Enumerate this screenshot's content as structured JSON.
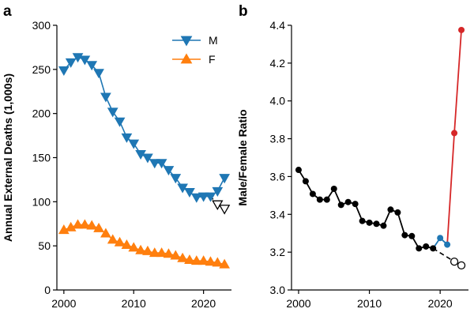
{
  "chart_data": [
    {
      "panel": "a",
      "type": "line",
      "title": "",
      "xlabel": "",
      "ylabel": "Annual External Deaths (1,000s)",
      "xlim": [
        1999,
        2024
      ],
      "ylim": [
        0,
        300
      ],
      "xticks": [
        2000,
        2010,
        2020
      ],
      "yticks": [
        0,
        50,
        100,
        150,
        200,
        250,
        300
      ],
      "legend": {
        "placement": "top-right",
        "entries": [
          "M",
          "F"
        ]
      },
      "grid": false,
      "colors": {
        "M": "#1f77b4",
        "F": "#ff7f0e"
      },
      "series": [
        {
          "name": "M",
          "marker": "triangle-down",
          "x": [
            2000,
            2001,
            2002,
            2003,
            2004,
            2005,
            2006,
            2007,
            2008,
            2009,
            2010,
            2011,
            2012,
            2013,
            2014,
            2015,
            2016,
            2017,
            2018,
            2019,
            2020,
            2021
          ],
          "y": [
            249,
            258,
            264,
            261,
            255,
            246,
            219,
            202,
            191,
            173,
            166,
            154,
            150,
            144,
            144,
            136,
            127,
            116,
            111,
            105,
            106,
            106
          ]
        },
        {
          "name": "M projected",
          "marker": "triangle-down-open",
          "x": [
            2021,
            2022,
            2023
          ],
          "y": [
            106,
            97,
            92
          ]
        },
        {
          "name": "M observed recent",
          "marker": "triangle-down",
          "x": [
            2021,
            2022,
            2023
          ],
          "y": [
            106,
            112,
            127
          ]
        },
        {
          "name": "F",
          "marker": "triangle-up",
          "x": [
            2000,
            2001,
            2002,
            2003,
            2004,
            2005,
            2006,
            2007,
            2008,
            2009,
            2010,
            2011,
            2012,
            2013,
            2014,
            2015,
            2016,
            2017,
            2018,
            2019,
            2020,
            2021,
            2022,
            2023
          ],
          "y": [
            68,
            71,
            74,
            74,
            73,
            70,
            64,
            57,
            54,
            51,
            48,
            45,
            44,
            42,
            42,
            41,
            39,
            36,
            34,
            33,
            33,
            32,
            31,
            29
          ]
        }
      ]
    },
    {
      "panel": "b",
      "type": "line",
      "title": "",
      "xlabel": "",
      "ylabel": "Male/Female Ratio",
      "xlim": [
        1999,
        2024
      ],
      "ylim": [
        3.0,
        4.4
      ],
      "xticks": [
        2000,
        2010,
        2020
      ],
      "yticks": [
        "3.0",
        "3.2",
        "3.4",
        "3.6",
        "3.8",
        "4.0",
        "4.2",
        "4.4"
      ],
      "grid": false,
      "colors": {
        "historical": "#000000",
        "recent": "#1f77b4",
        "observed": "#d62728",
        "projected": "#000000"
      },
      "series": [
        {
          "name": "historical",
          "x": [
            2000,
            2001,
            2002,
            2003,
            2004,
            2005,
            2006,
            2007,
            2008,
            2009,
            2010,
            2011,
            2012,
            2013,
            2014,
            2015,
            2016,
            2017,
            2018,
            2019
          ],
          "y": [
            3.635,
            3.575,
            3.508,
            3.478,
            3.478,
            3.535,
            3.45,
            3.465,
            3.455,
            3.365,
            3.356,
            3.35,
            3.34,
            3.425,
            3.41,
            3.29,
            3.285,
            3.22,
            3.23,
            3.22
          ]
        },
        {
          "name": "recent",
          "x": [
            2020,
            2021
          ],
          "y": [
            3.275,
            3.24
          ]
        },
        {
          "name": "observed",
          "x": [
            2021,
            2022,
            2023
          ],
          "y": [
            3.24,
            3.83,
            4.375
          ]
        },
        {
          "name": "projected",
          "x": [
            2019,
            2022,
            2023
          ],
          "y": [
            3.22,
            3.15,
            3.13
          ]
        }
      ]
    }
  ]
}
